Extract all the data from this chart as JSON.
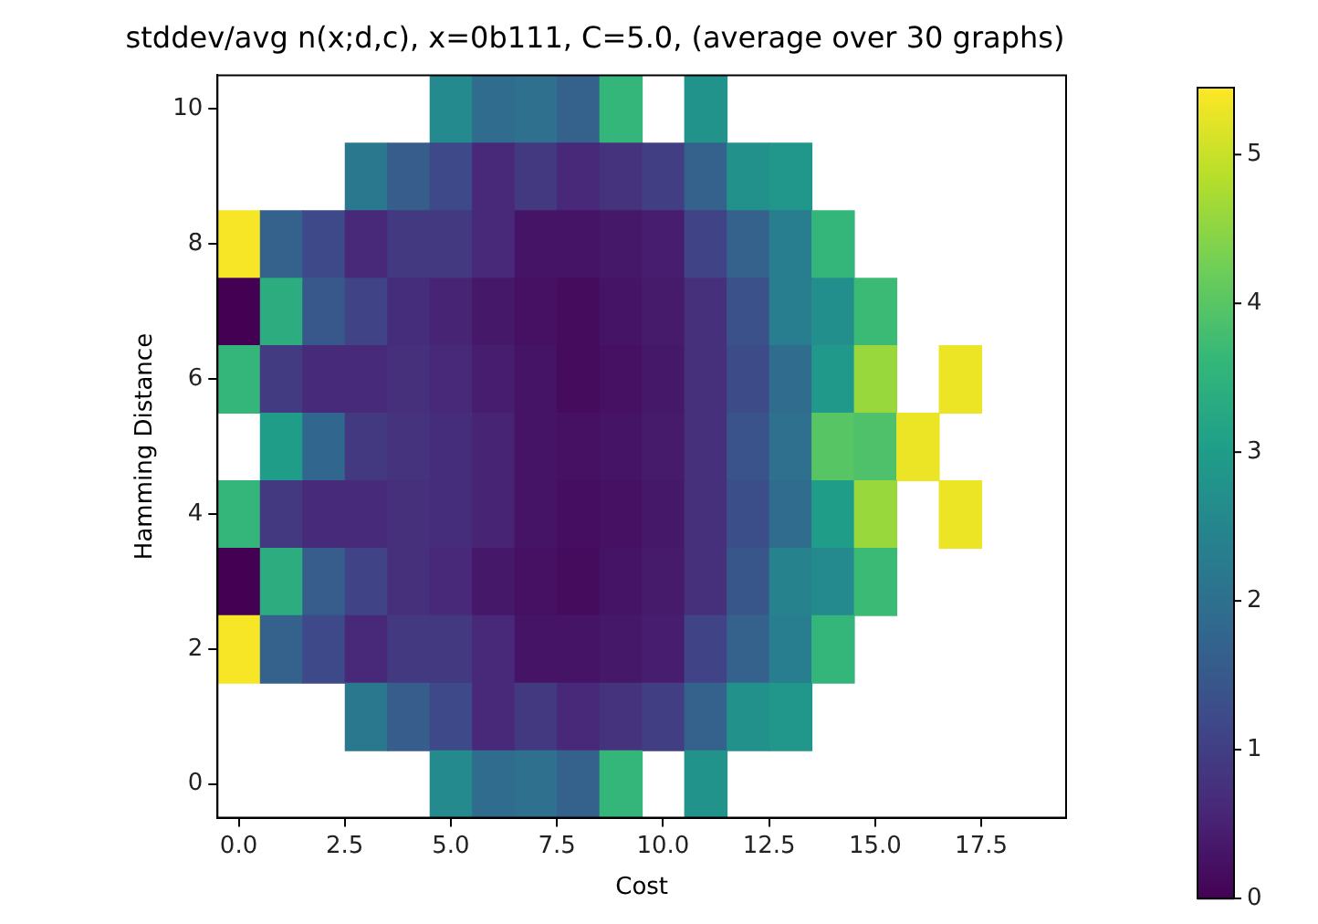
{
  "chart_data": {
    "type": "heatmap",
    "title": "stddev/avg n(x;d,c), x=0b111, C=5.0, (average over 30 graphs)",
    "xlabel": "Cost",
    "ylabel": "Hamming Distance",
    "x": [
      0,
      1,
      2,
      3,
      4,
      5,
      6,
      7,
      8,
      9,
      10,
      11,
      12,
      13,
      14,
      15,
      16,
      17
    ],
    "y": [
      10,
      9,
      8,
      7,
      6,
      5,
      4,
      3,
      2,
      1,
      0
    ],
    "cells": [
      [
        null,
        null,
        null,
        null,
        null,
        2.6,
        1.9,
        2.0,
        1.7,
        3.6,
        null,
        2.8,
        null,
        null,
        null,
        null,
        null,
        null
      ],
      [
        null,
        null,
        null,
        2.2,
        1.6,
        1.2,
        0.6,
        0.9,
        0.6,
        0.8,
        1.0,
        1.7,
        2.75,
        2.85,
        null,
        null,
        null,
        null
      ],
      [
        5.4,
        1.7,
        1.2,
        0.6,
        0.9,
        0.9,
        0.6,
        0.3,
        0.3,
        0.35,
        0.45,
        1.1,
        1.7,
        2.3,
        3.6,
        null,
        null,
        null
      ],
      [
        0.0,
        3.4,
        1.5,
        1.1,
        0.7,
        0.55,
        0.35,
        0.25,
        0.15,
        0.3,
        0.4,
        0.75,
        1.35,
        2.3,
        2.7,
        3.7,
        null,
        null
      ],
      [
        3.6,
        0.95,
        0.65,
        0.65,
        0.75,
        0.6,
        0.45,
        0.3,
        0.15,
        0.25,
        0.35,
        0.75,
        1.25,
        1.9,
        2.9,
        4.6,
        null,
        5.3
      ],
      [
        null,
        3.0,
        1.8,
        0.9,
        0.8,
        0.7,
        0.55,
        0.3,
        0.25,
        0.3,
        0.4,
        0.75,
        1.4,
        2.0,
        4.0,
        3.9,
        5.3,
        null
      ],
      [
        3.6,
        0.9,
        0.65,
        0.65,
        0.75,
        0.7,
        0.55,
        0.3,
        0.2,
        0.25,
        0.35,
        0.75,
        1.3,
        1.9,
        3.0,
        4.6,
        null,
        5.3
      ],
      [
        0.0,
        3.4,
        1.6,
        1.1,
        0.75,
        0.6,
        0.35,
        0.25,
        0.15,
        0.3,
        0.4,
        0.75,
        1.45,
        2.45,
        2.6,
        3.7,
        null,
        null
      ],
      [
        5.4,
        1.7,
        1.2,
        0.6,
        0.9,
        0.9,
        0.6,
        0.3,
        0.3,
        0.35,
        0.45,
        1.1,
        1.7,
        2.3,
        3.6,
        null,
        null,
        null
      ],
      [
        null,
        null,
        null,
        2.2,
        1.6,
        1.2,
        0.6,
        0.9,
        0.6,
        0.8,
        1.0,
        1.7,
        2.75,
        2.85,
        null,
        null,
        null,
        null
      ],
      [
        null,
        null,
        null,
        null,
        null,
        2.6,
        1.9,
        2.0,
        1.7,
        3.6,
        null,
        2.8,
        null,
        null,
        null,
        null,
        null,
        null
      ]
    ],
    "clim": [
      0,
      5.45
    ],
    "cticks": [
      0,
      1,
      2,
      3,
      4,
      5
    ],
    "xlim": [
      -0.5,
      19.5
    ],
    "ylim": [
      -0.5,
      10.5
    ],
    "xticks": [
      {
        "value": 0,
        "label": "0.0"
      },
      {
        "value": 2.5,
        "label": "2.5"
      },
      {
        "value": 5,
        "label": "5.0"
      },
      {
        "value": 7.5,
        "label": "7.5"
      },
      {
        "value": 10,
        "label": "10.0"
      },
      {
        "value": 12.5,
        "label": "12.5"
      },
      {
        "value": 15,
        "label": "15.0"
      },
      {
        "value": 17.5,
        "label": "17.5"
      }
    ],
    "yticks": [
      0,
      2,
      4,
      6,
      8,
      10
    ],
    "grid": false
  }
}
